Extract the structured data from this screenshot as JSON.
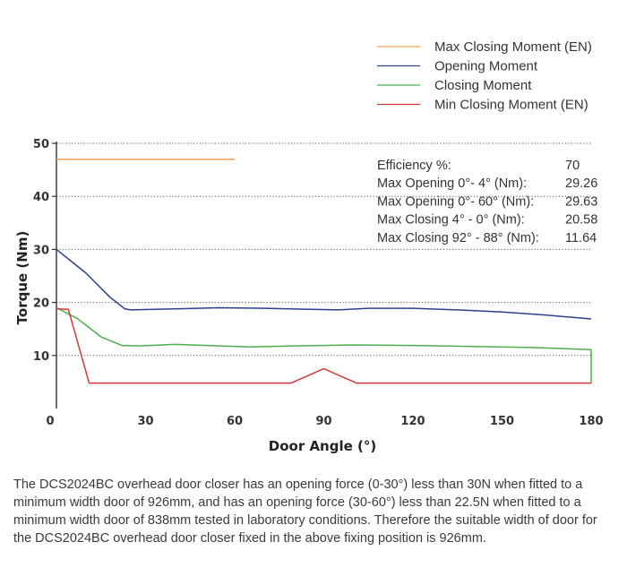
{
  "chart_data": {
    "type": "line",
    "xlabel": "Door Angle (°)",
    "ylabel": "Torque (Nm)",
    "xlim": [
      0,
      180
    ],
    "ylim": [
      0,
      50
    ],
    "xticks": [
      "0",
      "30",
      "60",
      "90",
      "120",
      "150",
      "180"
    ],
    "xtick_values": [
      0,
      30,
      60,
      90,
      120,
      150,
      180
    ],
    "yticks": [
      "10",
      "20",
      "30",
      "40",
      "50"
    ],
    "ytick_values": [
      10,
      20,
      30,
      40,
      50
    ],
    "grid": "horizontal-dotted",
    "legend_position": "top-right",
    "series": [
      {
        "name": "Max Closing Moment (EN)",
        "color": "#f0a050",
        "points": [
          [
            0,
            47
          ],
          [
            60,
            47
          ]
        ]
      },
      {
        "name": "Opening Moment",
        "color": "#2e3f8f",
        "points": [
          [
            0,
            30
          ],
          [
            10,
            25.5
          ],
          [
            18,
            21
          ],
          [
            23,
            18.8
          ],
          [
            25,
            18.6
          ],
          [
            40,
            18.8
          ],
          [
            55,
            19.0
          ],
          [
            70,
            18.9
          ],
          [
            85,
            18.7
          ],
          [
            95,
            18.6
          ],
          [
            105,
            18.9
          ],
          [
            120,
            18.9
          ],
          [
            135,
            18.6
          ],
          [
            150,
            18.2
          ],
          [
            165,
            17.6
          ],
          [
            180,
            16.9
          ]
        ]
      },
      {
        "name": "Closing Moment",
        "color": "#4caf50",
        "points": [
          [
            0,
            19
          ],
          [
            7,
            17
          ],
          [
            15,
            13.5
          ],
          [
            22,
            11.9
          ],
          [
            28,
            11.8
          ],
          [
            40,
            12.1
          ],
          [
            55,
            11.8
          ],
          [
            65,
            11.6
          ],
          [
            80,
            11.8
          ],
          [
            100,
            12.0
          ],
          [
            120,
            11.9
          ],
          [
            140,
            11.7
          ],
          [
            160,
            11.5
          ],
          [
            180,
            11.1
          ],
          [
            180,
            4.8
          ]
        ]
      },
      {
        "name": "Min Closing Moment (EN)",
        "color": "#d23a3a",
        "points": [
          [
            0,
            18.8
          ],
          [
            4,
            18.7
          ],
          [
            11,
            4.8
          ],
          [
            40,
            4.8
          ],
          [
            79,
            4.8
          ],
          [
            90,
            7.5
          ],
          [
            101,
            4.8
          ],
          [
            140,
            4.8
          ],
          [
            180,
            4.8
          ]
        ]
      }
    ]
  },
  "stats": [
    {
      "label": "Efficiency %:",
      "value": "70"
    },
    {
      "label": "Max Opening 0°- 4° (Nm):",
      "value": "29.26"
    },
    {
      "label": "Max Opening 0°- 60° (Nm):",
      "value": "29.63"
    },
    {
      "label": "Max Closing 4° - 0° (Nm):",
      "value": "20.58"
    },
    {
      "label": "Max Closing 92° - 88° (Nm):",
      "value": "11.64"
    }
  ],
  "caption": "The DCS2024BC overhead door closer has an opening force (0-30°) less than 30N when fitted to a minimum width door of 926mm, and has an opening force (30-60°) less than 22.5N when fitted to a minimum width door of 838mm tested in laboratory conditions. Therefore the suitable width of door for the DCS2024BC overhead door closer fixed in the above fixing position is 926mm."
}
